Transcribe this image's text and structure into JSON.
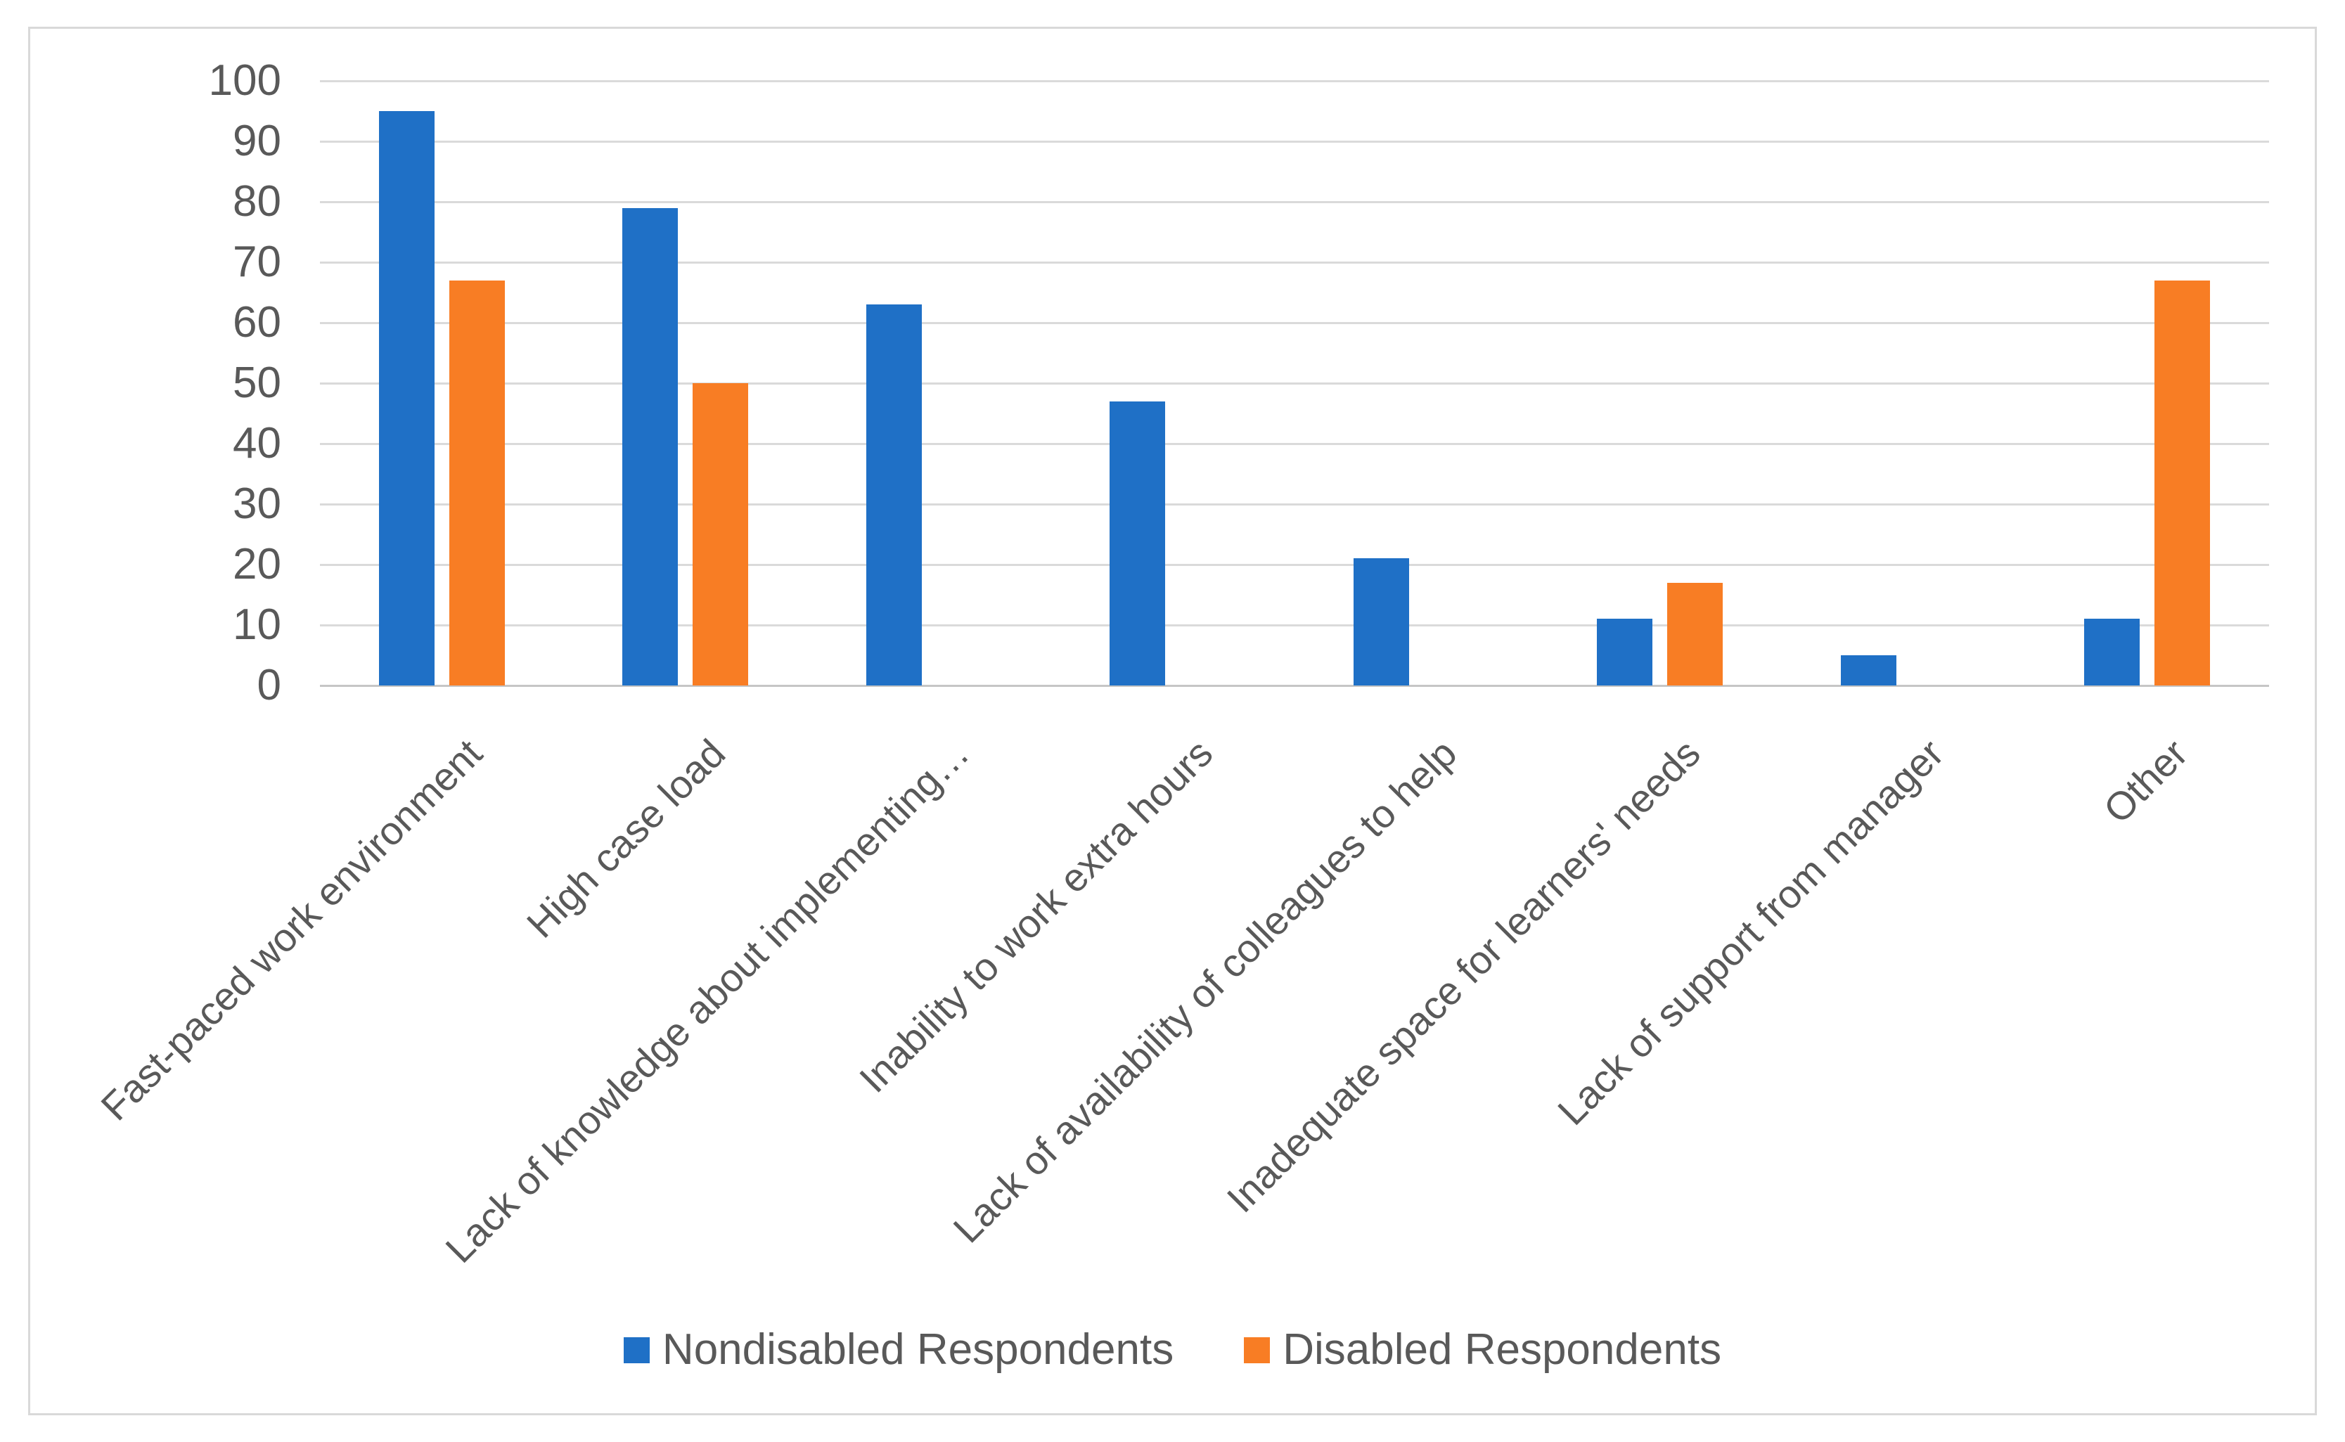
{
  "chart_data": {
    "type": "bar",
    "title": "",
    "categories": [
      "Fast-paced work environment",
      "High case load",
      "Lack of knowledge about implementing…",
      "Inability to work extra hours",
      "Lack of availability of colleagues to help",
      "Inadequate space for learners' needs",
      "Lack of support from manager",
      "Other"
    ],
    "series": [
      {
        "name": "Nondisabled Respondents",
        "color": "#1F70C6",
        "values": [
          95,
          79,
          63,
          47,
          21,
          11,
          5,
          11
        ]
      },
      {
        "name": "Disabled Respondents",
        "color": "#F87D24",
        "values": [
          67,
          50,
          0,
          0,
          0,
          17,
          0,
          67
        ]
      }
    ],
    "ylim": [
      0,
      100
    ],
    "yticks": [
      0,
      10,
      20,
      30,
      40,
      50,
      60,
      70,
      80,
      90,
      100
    ],
    "grid": "horizontal-gridlines",
    "legend_position": "bottom-center",
    "xlabel": "",
    "ylabel": ""
  },
  "style_colors": {
    "background": "#FFFFFF",
    "frame_border": "#D9D9D9",
    "gridline": "#DADADA",
    "axis_line": "#C6C6C6",
    "text": "#595959"
  }
}
